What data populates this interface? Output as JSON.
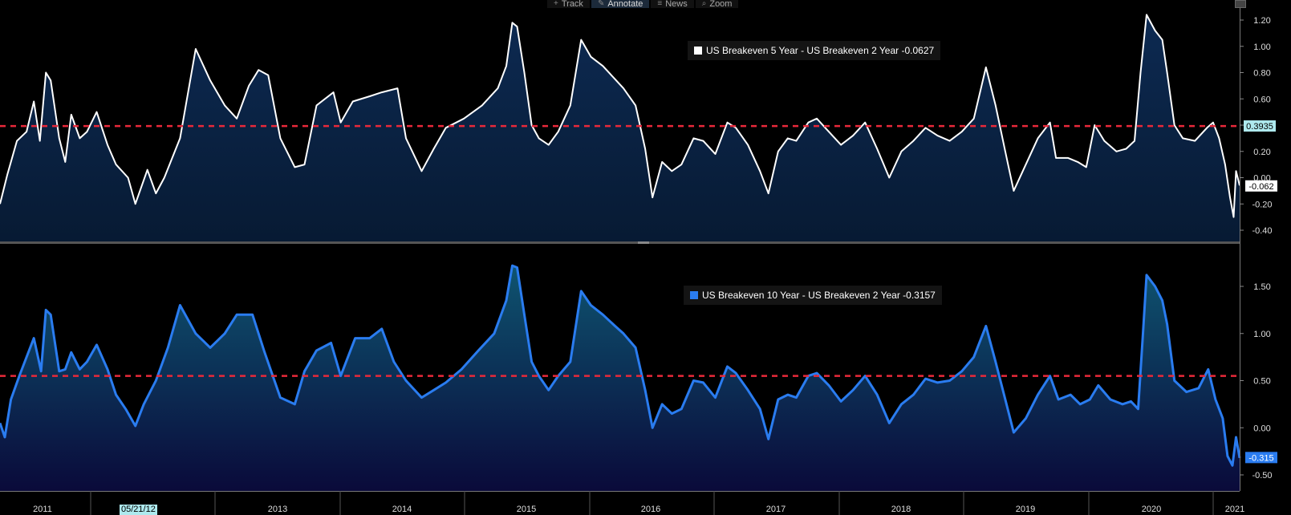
{
  "toolbar": {
    "items": [
      {
        "icon": "crosshair-icon",
        "glyph": "+",
        "label": "Track"
      },
      {
        "icon": "pencil-icon",
        "glyph": "✎",
        "label": "Annotate"
      },
      {
        "icon": "news-icon",
        "glyph": "≡",
        "label": "News"
      },
      {
        "icon": "zoom-icon",
        "glyph": "⌕",
        "label": "Zoom"
      }
    ],
    "active_index": 1
  },
  "x_axis": {
    "year_labels": [
      "2011",
      "2013",
      "2014",
      "2015",
      "2016",
      "2017",
      "2018",
      "2019",
      "2020",
      "2021"
    ],
    "cursor_date": "05/21/12"
  },
  "chart_data": [
    {
      "type": "area",
      "legend": "US Breakeven 5 Year - US Breakeven 2 Year -0.0627",
      "series_name": "US Breakeven 5 Year - US Breakeven 2 Year",
      "color": "#ffffff",
      "fill_top": "#0d2a52",
      "fill_bottom": "#071a33",
      "ylim": [
        -0.48,
        1.28
      ],
      "yticks": [
        "1.20",
        "1.00",
        "0.80",
        "0.60",
        "0.40",
        "0.20",
        "0.00",
        "-0.20",
        "-0.40"
      ],
      "reference_line": {
        "value": 0.3935,
        "label": "0.3935",
        "color": "#e8293a"
      },
      "last_value": {
        "value": -0.0627,
        "label": "-0.062"
      },
      "x_range": [
        2010.96,
        2021.22
      ],
      "points": [
        [
          2010.96,
          -0.2
        ],
        [
          2011.02,
          0.02
        ],
        [
          2011.1,
          0.28
        ],
        [
          2011.18,
          0.35
        ],
        [
          2011.24,
          0.58
        ],
        [
          2011.29,
          0.28
        ],
        [
          2011.34,
          0.8
        ],
        [
          2011.38,
          0.74
        ],
        [
          2011.45,
          0.3
        ],
        [
          2011.5,
          0.12
        ],
        [
          2011.55,
          0.48
        ],
        [
          2011.62,
          0.3
        ],
        [
          2011.68,
          0.35
        ],
        [
          2011.76,
          0.5
        ],
        [
          2011.85,
          0.25
        ],
        [
          2011.92,
          0.1
        ],
        [
          2012.02,
          0.0
        ],
        [
          2012.08,
          -0.2
        ],
        [
          2012.18,
          0.06
        ],
        [
          2012.25,
          -0.12
        ],
        [
          2012.32,
          0.0
        ],
        [
          2012.45,
          0.3
        ],
        [
          2012.58,
          0.98
        ],
        [
          2012.7,
          0.74
        ],
        [
          2012.82,
          0.55
        ],
        [
          2012.92,
          0.45
        ],
        [
          2013.02,
          0.7
        ],
        [
          2013.1,
          0.82
        ],
        [
          2013.18,
          0.78
        ],
        [
          2013.28,
          0.3
        ],
        [
          2013.4,
          0.08
        ],
        [
          2013.48,
          0.1
        ],
        [
          2013.58,
          0.55
        ],
        [
          2013.72,
          0.65
        ],
        [
          2013.78,
          0.42
        ],
        [
          2013.88,
          0.58
        ],
        [
          2014.02,
          0.62
        ],
        [
          2014.12,
          0.65
        ],
        [
          2014.25,
          0.68
        ],
        [
          2014.32,
          0.3
        ],
        [
          2014.45,
          0.05
        ],
        [
          2014.55,
          0.22
        ],
        [
          2014.65,
          0.38
        ],
        [
          2014.8,
          0.45
        ],
        [
          2014.95,
          0.55
        ],
        [
          2015.08,
          0.68
        ],
        [
          2015.15,
          0.85
        ],
        [
          2015.2,
          1.18
        ],
        [
          2015.24,
          1.15
        ],
        [
          2015.3,
          0.8
        ],
        [
          2015.36,
          0.4
        ],
        [
          2015.42,
          0.3
        ],
        [
          2015.5,
          0.25
        ],
        [
          2015.58,
          0.35
        ],
        [
          2015.68,
          0.55
        ],
        [
          2015.77,
          1.05
        ],
        [
          2015.85,
          0.92
        ],
        [
          2015.95,
          0.85
        ],
        [
          2016.05,
          0.75
        ],
        [
          2016.12,
          0.68
        ],
        [
          2016.22,
          0.55
        ],
        [
          2016.3,
          0.22
        ],
        [
          2016.36,
          -0.15
        ],
        [
          2016.44,
          0.12
        ],
        [
          2016.52,
          0.05
        ],
        [
          2016.6,
          0.1
        ],
        [
          2016.7,
          0.3
        ],
        [
          2016.78,
          0.28
        ],
        [
          2016.88,
          0.18
        ],
        [
          2016.98,
          0.42
        ],
        [
          2017.05,
          0.38
        ],
        [
          2017.15,
          0.25
        ],
        [
          2017.25,
          0.05
        ],
        [
          2017.32,
          -0.12
        ],
        [
          2017.4,
          0.2
        ],
        [
          2017.48,
          0.3
        ],
        [
          2017.55,
          0.28
        ],
        [
          2017.65,
          0.42
        ],
        [
          2017.72,
          0.45
        ],
        [
          2017.82,
          0.35
        ],
        [
          2017.92,
          0.25
        ],
        [
          2018.02,
          0.32
        ],
        [
          2018.12,
          0.42
        ],
        [
          2018.22,
          0.22
        ],
        [
          2018.32,
          0.0
        ],
        [
          2018.42,
          0.2
        ],
        [
          2018.52,
          0.28
        ],
        [
          2018.62,
          0.38
        ],
        [
          2018.72,
          0.32
        ],
        [
          2018.82,
          0.28
        ],
        [
          2018.92,
          0.35
        ],
        [
          2019.02,
          0.45
        ],
        [
          2019.12,
          0.84
        ],
        [
          2019.2,
          0.55
        ],
        [
          2019.28,
          0.2
        ],
        [
          2019.35,
          -0.1
        ],
        [
          2019.45,
          0.1
        ],
        [
          2019.55,
          0.3
        ],
        [
          2019.65,
          0.42
        ],
        [
          2019.7,
          0.15
        ],
        [
          2019.8,
          0.15
        ],
        [
          2019.88,
          0.12
        ],
        [
          2019.95,
          0.08
        ],
        [
          2020.02,
          0.4
        ],
        [
          2020.1,
          0.28
        ],
        [
          2020.2,
          0.2
        ],
        [
          2020.28,
          0.22
        ],
        [
          2020.35,
          0.28
        ],
        [
          2020.4,
          0.8
        ],
        [
          2020.45,
          1.24
        ],
        [
          2020.52,
          1.12
        ],
        [
          2020.58,
          1.05
        ],
        [
          2020.62,
          0.8
        ],
        [
          2020.68,
          0.4
        ],
        [
          2020.75,
          0.3
        ],
        [
          2020.85,
          0.28
        ],
        [
          2020.95,
          0.38
        ],
        [
          2021.0,
          0.42
        ],
        [
          2021.05,
          0.3
        ],
        [
          2021.1,
          0.1
        ],
        [
          2021.14,
          -0.15
        ],
        [
          2021.17,
          -0.3
        ],
        [
          2021.19,
          0.05
        ],
        [
          2021.22,
          -0.06
        ]
      ]
    },
    {
      "type": "area",
      "legend": "US Breakeven 10 Year - US Breakeven 2 Year -0.3157",
      "series_name": "US Breakeven 10 Year - US Breakeven 2 Year",
      "color": "#2a7cf0",
      "fill_top": "#0e5470",
      "fill_bottom": "#0a0a3a",
      "ylim": [
        -0.67,
        1.8
      ],
      "yticks": [
        "1.50",
        "1.00",
        "0.50",
        "0.00",
        "-0.50"
      ],
      "reference_line": {
        "value": 0.55,
        "label": "",
        "color": "#e8293a"
      },
      "last_value": {
        "value": -0.3157,
        "label": "-0.315"
      },
      "x_range": [
        2010.96,
        2021.22
      ],
      "points": [
        [
          2010.96,
          0.05
        ],
        [
          2011.0,
          -0.1
        ],
        [
          2011.05,
          0.3
        ],
        [
          2011.12,
          0.55
        ],
        [
          2011.18,
          0.75
        ],
        [
          2011.24,
          0.95
        ],
        [
          2011.3,
          0.6
        ],
        [
          2011.34,
          1.25
        ],
        [
          2011.38,
          1.2
        ],
        [
          2011.45,
          0.6
        ],
        [
          2011.5,
          0.62
        ],
        [
          2011.55,
          0.8
        ],
        [
          2011.62,
          0.62
        ],
        [
          2011.68,
          0.7
        ],
        [
          2011.76,
          0.88
        ],
        [
          2011.85,
          0.62
        ],
        [
          2011.92,
          0.35
        ],
        [
          2012.0,
          0.2
        ],
        [
          2012.08,
          0.02
        ],
        [
          2012.15,
          0.25
        ],
        [
          2012.25,
          0.5
        ],
        [
          2012.35,
          0.85
        ],
        [
          2012.45,
          1.3
        ],
        [
          2012.58,
          1.0
        ],
        [
          2012.7,
          0.85
        ],
        [
          2012.82,
          1.0
        ],
        [
          2012.92,
          1.2
        ],
        [
          2013.05,
          1.2
        ],
        [
          2013.15,
          0.8
        ],
        [
          2013.28,
          0.32
        ],
        [
          2013.4,
          0.25
        ],
        [
          2013.48,
          0.6
        ],
        [
          2013.58,
          0.82
        ],
        [
          2013.7,
          0.9
        ],
        [
          2013.78,
          0.55
        ],
        [
          2013.9,
          0.95
        ],
        [
          2014.02,
          0.95
        ],
        [
          2014.12,
          1.05
        ],
        [
          2014.22,
          0.7
        ],
        [
          2014.32,
          0.5
        ],
        [
          2014.45,
          0.32
        ],
        [
          2014.55,
          0.4
        ],
        [
          2014.65,
          0.48
        ],
        [
          2014.78,
          0.62
        ],
        [
          2014.92,
          0.82
        ],
        [
          2015.05,
          1.0
        ],
        [
          2015.15,
          1.35
        ],
        [
          2015.2,
          1.72
        ],
        [
          2015.24,
          1.7
        ],
        [
          2015.3,
          1.2
        ],
        [
          2015.36,
          0.7
        ],
        [
          2015.42,
          0.55
        ],
        [
          2015.5,
          0.4
        ],
        [
          2015.58,
          0.55
        ],
        [
          2015.68,
          0.7
        ],
        [
          2015.77,
          1.45
        ],
        [
          2015.85,
          1.3
        ],
        [
          2015.95,
          1.2
        ],
        [
          2016.05,
          1.08
        ],
        [
          2016.12,
          1.0
        ],
        [
          2016.22,
          0.85
        ],
        [
          2016.3,
          0.4
        ],
        [
          2016.36,
          0.0
        ],
        [
          2016.44,
          0.25
        ],
        [
          2016.52,
          0.15
        ],
        [
          2016.6,
          0.2
        ],
        [
          2016.7,
          0.5
        ],
        [
          2016.78,
          0.48
        ],
        [
          2016.88,
          0.32
        ],
        [
          2016.98,
          0.65
        ],
        [
          2017.05,
          0.58
        ],
        [
          2017.15,
          0.4
        ],
        [
          2017.25,
          0.2
        ],
        [
          2017.32,
          -0.12
        ],
        [
          2017.4,
          0.3
        ],
        [
          2017.48,
          0.35
        ],
        [
          2017.55,
          0.32
        ],
        [
          2017.65,
          0.55
        ],
        [
          2017.72,
          0.58
        ],
        [
          2017.82,
          0.45
        ],
        [
          2017.92,
          0.28
        ],
        [
          2018.02,
          0.4
        ],
        [
          2018.12,
          0.55
        ],
        [
          2018.22,
          0.35
        ],
        [
          2018.32,
          0.05
        ],
        [
          2018.42,
          0.25
        ],
        [
          2018.52,
          0.35
        ],
        [
          2018.62,
          0.52
        ],
        [
          2018.72,
          0.48
        ],
        [
          2018.82,
          0.5
        ],
        [
          2018.92,
          0.6
        ],
        [
          2019.02,
          0.75
        ],
        [
          2019.12,
          1.08
        ],
        [
          2019.2,
          0.7
        ],
        [
          2019.28,
          0.3
        ],
        [
          2019.35,
          -0.05
        ],
        [
          2019.45,
          0.1
        ],
        [
          2019.55,
          0.35
        ],
        [
          2019.65,
          0.55
        ],
        [
          2019.72,
          0.3
        ],
        [
          2019.82,
          0.35
        ],
        [
          2019.9,
          0.25
        ],
        [
          2019.98,
          0.3
        ],
        [
          2020.05,
          0.45
        ],
        [
          2020.15,
          0.3
        ],
        [
          2020.25,
          0.25
        ],
        [
          2020.32,
          0.28
        ],
        [
          2020.38,
          0.2
        ],
        [
          2020.42,
          1.0
        ],
        [
          2020.45,
          1.62
        ],
        [
          2020.52,
          1.5
        ],
        [
          2020.58,
          1.35
        ],
        [
          2020.62,
          1.1
        ],
        [
          2020.68,
          0.5
        ],
        [
          2020.78,
          0.38
        ],
        [
          2020.88,
          0.42
        ],
        [
          2020.96,
          0.62
        ],
        [
          2021.02,
          0.3
        ],
        [
          2021.08,
          0.1
        ],
        [
          2021.12,
          -0.3
        ],
        [
          2021.16,
          -0.4
        ],
        [
          2021.19,
          -0.1
        ],
        [
          2021.22,
          -0.32
        ]
      ]
    }
  ]
}
